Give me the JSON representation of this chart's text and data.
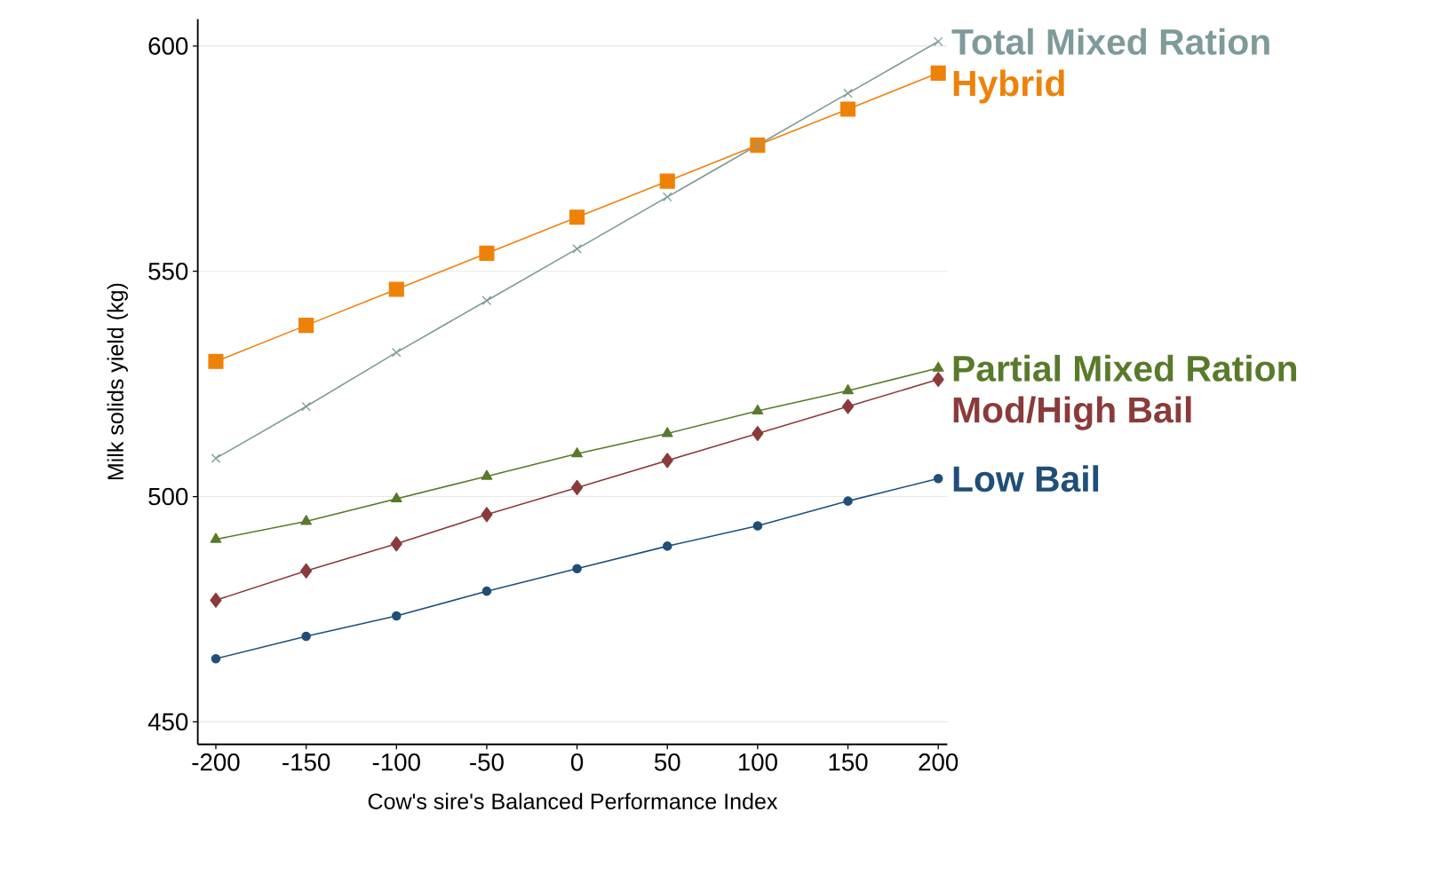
{
  "chart_data": {
    "type": "line",
    "xlabel": "Cow's sire's Balanced Performance Index",
    "ylabel": "Milk solids yield (kg)",
    "x": [
      -200,
      -150,
      -100,
      -50,
      0,
      50,
      100,
      150,
      200
    ],
    "xlim": [
      -210,
      205
    ],
    "ylim": [
      445,
      606
    ],
    "xticks": [
      -200,
      -150,
      -100,
      -50,
      0,
      50,
      100,
      150,
      200
    ],
    "yticks": [
      450,
      500,
      550,
      600
    ],
    "grid": "y",
    "legend": "right",
    "series": [
      {
        "name": "Total Mixed Ration",
        "color": "#7f9a9a",
        "marker": "cross",
        "values": [
          508.5,
          520,
          532,
          543.5,
          555,
          566.5,
          578,
          589.5,
          601
        ]
      },
      {
        "name": "Hybrid",
        "color": "#ee8208",
        "marker": "square",
        "values": [
          530,
          538,
          546,
          554,
          562,
          570,
          578,
          586,
          594
        ]
      },
      {
        "name": "Partial Mixed Ration",
        "color": "#587a2a",
        "marker": "triangle",
        "values": [
          490.5,
          494.5,
          499.5,
          504.5,
          509.5,
          514,
          519,
          523.5,
          528.5
        ]
      },
      {
        "name": "Mod/High Bail",
        "color": "#8b3a3a",
        "marker": "diamond",
        "values": [
          477,
          483.5,
          489.5,
          496,
          502,
          508,
          514,
          520,
          526
        ]
      },
      {
        "name": "Low Bail",
        "color": "#1f4e79",
        "marker": "circle",
        "values": [
          464,
          469,
          473.5,
          479,
          484,
          489,
          493.5,
          499,
          504
        ]
      }
    ]
  }
}
